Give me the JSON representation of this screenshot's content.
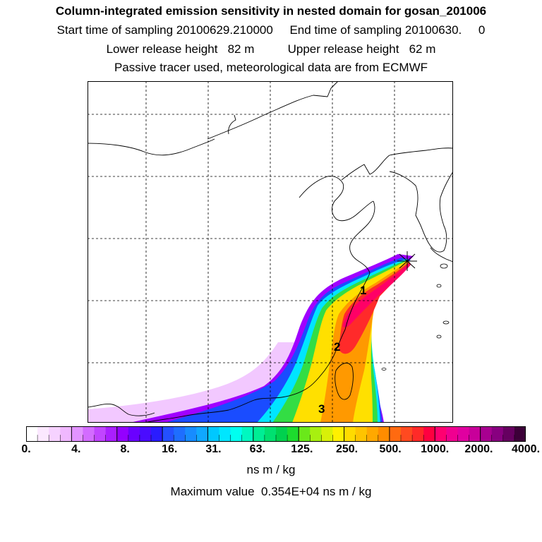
{
  "header": {
    "title": "Column-integrated emission sensitivity in nested domain for gosan_201006",
    "sampling_line": "Start time of sampling 20100629.210000     End time of sampling 20100630.     0",
    "height_line": "Lower release height   82 m          Upper release height   62 m",
    "tracer_line": "Passive tracer used, meteorological data are from ECMWF"
  },
  "map": {
    "release_site_marker": "star",
    "trajectory_labels": [
      "1",
      "2",
      "3"
    ],
    "plume_colors": {
      "outer": "#a000ff",
      "blue": "#1a4cff",
      "cyan": "#00e5ff",
      "green": "#33dd44",
      "yellow": "#ffe000",
      "orange": "#ff9900",
      "red": "#ff2a2a",
      "core": "#ff0066"
    }
  },
  "colorbar": {
    "segment_colors": [
      "#ffffff",
      "#fbe8ff",
      "#f6d2ff",
      "#f0b8ff",
      "#e294ff",
      "#d36cff",
      "#c145ff",
      "#aa1fff",
      "#9400ff",
      "#6a00ff",
      "#4a0cff",
      "#2a1cff",
      "#2450ff",
      "#1e6eff",
      "#178cff",
      "#10a8ff",
      "#00c8ff",
      "#00e6ff",
      "#00fff0",
      "#00f8c0",
      "#00ee95",
      "#00e070",
      "#00d14e",
      "#1ddc2e",
      "#6ae81a",
      "#a8ef10",
      "#d8f008",
      "#fff000",
      "#ffdb00",
      "#ffc400",
      "#ffa800",
      "#ff8c00",
      "#ff6a10",
      "#ff4a20",
      "#ff2a28",
      "#ff0040",
      "#ff0070",
      "#f00090",
      "#e000a0",
      "#c8009a",
      "#a80090",
      "#880080",
      "#660060",
      "#3c0038"
    ],
    "major_every": 4,
    "tick_labels": [
      "0.",
      "4.",
      "8.",
      "16.",
      "31.",
      "63.",
      "125.",
      "250.",
      "500.",
      "1000.",
      "2000.",
      "4000."
    ],
    "tick_positions_fraction": [
      0.0,
      0.1,
      0.198,
      0.287,
      0.375,
      0.463,
      0.552,
      0.642,
      0.729,
      0.818,
      0.906,
      1.0
    ],
    "units": "ns m / kg",
    "max_value_line": "Maximum value  0.354E+04 ns m / kg"
  }
}
